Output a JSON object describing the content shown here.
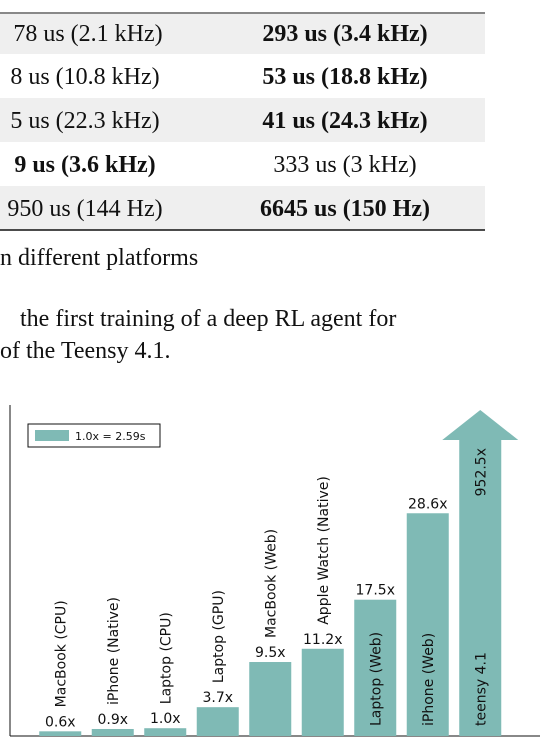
{
  "table": {
    "rows": [
      [
        "78 us (2.1 kHz)",
        "293 us (3.4 kHz)"
      ],
      [
        "8 us (10.8 kHz)",
        "53 us (18.8 kHz)"
      ],
      [
        "5 us (22.3 kHz)",
        "41 us (24.3 kHz)"
      ],
      [
        "9 us (3.6 kHz)",
        "333 us (3 kHz)"
      ],
      [
        "950 us (144 Hz)",
        "6645 us (150 Hz)"
      ]
    ]
  },
  "caption": "n different platforms",
  "paragraph": [
    "the first training of a deep RL agent for",
    "of the Teensy 4.1."
  ],
  "chart_data": {
    "type": "bar",
    "categories": [
      "MacBook (CPU)",
      "iPhone (Native)",
      "Laptop (CPU)",
      "Laptop (GPU)",
      "MacBook (Web)",
      "Apple Watch (Native)",
      "Laptop (Web)",
      "iPhone (Web)",
      "teensy 4.1"
    ],
    "series": [
      {
        "name": "1.0x = 2.59s",
        "color": "#7fbab5",
        "values": [
          0.6,
          0.9,
          1.0,
          3.7,
          9.5,
          11.2,
          17.5,
          28.6,
          952.5
        ],
        "value_labels": [
          "0.6x",
          "0.9x",
          "1.0x",
          "3.7x",
          "9.5x",
          "11.2x",
          "17.5x",
          "28.6x",
          "952.5x"
        ]
      }
    ],
    "ylim": [
      0,
      42.5
    ],
    "legend": "upper left"
  }
}
